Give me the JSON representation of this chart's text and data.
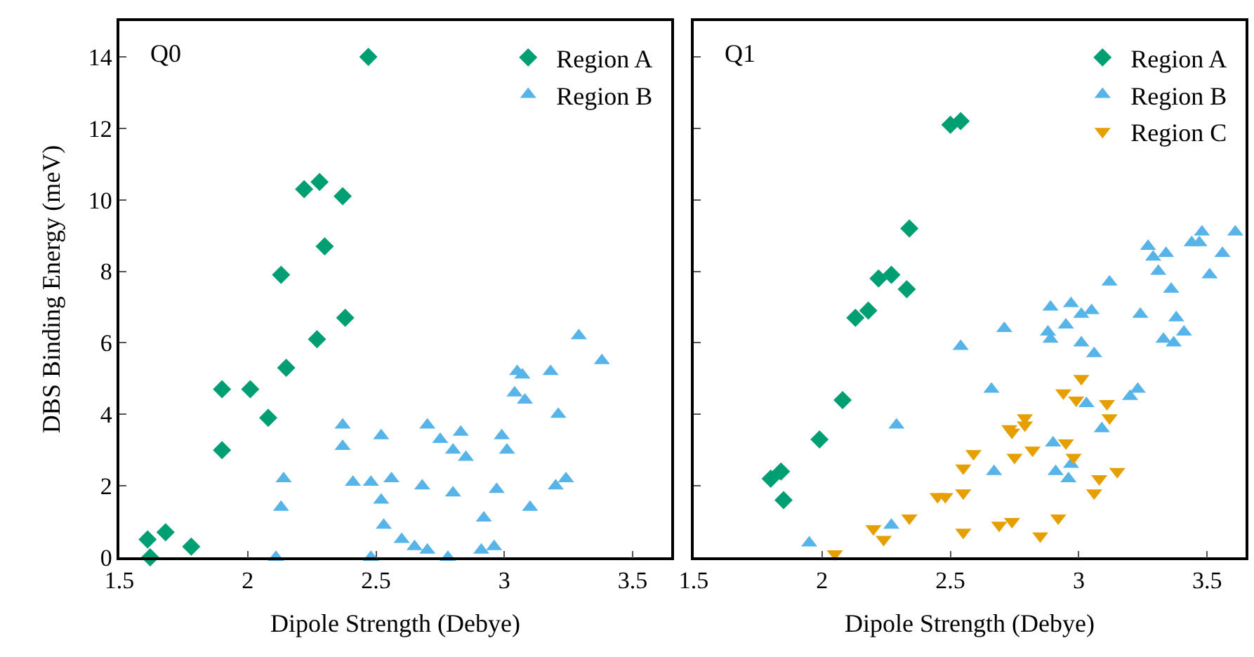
{
  "chart_data": [
    {
      "type": "scatter",
      "title": "Q0",
      "xlabel": "Dipole Strength (Debye)",
      "ylabel": "DBS Binding Energy (meV)",
      "xlim": [
        1.5,
        3.65
      ],
      "xticks": [
        {
          "value": 1.5,
          "label": "1.5"
        },
        2,
        {
          "value": 2.5,
          "label": "2.5"
        },
        3,
        {
          "value": 3.5,
          "label": "3.5"
        }
      ],
      "ylim": [
        0,
        15
      ],
      "yticks": [
        0,
        2,
        4,
        6,
        8,
        10,
        12,
        14
      ],
      "legend": "top right",
      "series": [
        {
          "name": "Region A",
          "color": "#009e73",
          "marker": "diamond",
          "x": [
            1.61,
            1.62,
            1.68,
            1.78,
            1.9,
            1.9,
            2.01,
            2.08,
            2.13,
            2.15,
            2.22,
            2.28,
            2.27,
            2.3,
            2.37,
            2.38,
            2.47
          ],
          "values": [
            0.5,
            0,
            0.7,
            0.3,
            4.7,
            3.0,
            4.7,
            3.9,
            7.9,
            5.3,
            10.3,
            10.5,
            6.1,
            8.7,
            10.1,
            6.7,
            14.0
          ]
        },
        {
          "name": "Region B",
          "color": "#56b4e9",
          "marker": "triangle",
          "x": [
            2.37,
            2.37,
            2.14,
            2.13,
            2.11,
            2.41,
            2.48,
            2.52,
            2.52,
            2.53,
            2.48,
            2.56,
            2.6,
            2.65,
            2.7,
            2.78,
            2.68,
            2.7,
            2.75,
            2.8,
            2.83,
            2.85,
            2.8,
            2.91,
            2.96,
            2.92,
            2.97,
            2.99,
            3.01,
            3.05,
            3.07,
            3.04,
            3.08,
            3.1,
            3.18,
            3.21,
            3.2,
            3.24,
            3.29,
            3.38
          ],
          "values": [
            3.7,
            3.1,
            2.2,
            1.4,
            0,
            2.1,
            2.1,
            3.4,
            1.6,
            0.9,
            0,
            2.2,
            0.5,
            0.3,
            0.2,
            0,
            2.0,
            3.7,
            3.3,
            3.0,
            3.5,
            2.8,
            1.8,
            0.2,
            0.3,
            1.1,
            1.9,
            3.4,
            3.0,
            5.2,
            5.1,
            4.6,
            4.4,
            1.4,
            5.2,
            4.0,
            2.0,
            2.2,
            6.2,
            5.5
          ]
        }
      ]
    },
    {
      "type": "scatter",
      "title": "Q1",
      "xlabel": "Dipole Strength (Debye)",
      "xlim": [
        1.5,
        3.65
      ],
      "xticks": [
        {
          "value": 1.5,
          "label": "1.5"
        },
        2,
        {
          "value": 2.5,
          "label": "2.5"
        },
        3,
        {
          "value": 3.5,
          "label": "3.5"
        }
      ],
      "ylim": [
        0,
        15
      ],
      "yticks": [
        0,
        2,
        4,
        6,
        8,
        10,
        12,
        14
      ],
      "tick_labels": "x",
      "legend": "top right",
      "series": [
        {
          "name": "Region A",
          "color": "#009e73",
          "marker": "diamond",
          "x": [
            1.8,
            1.84,
            1.85,
            1.99,
            2.08,
            2.13,
            2.18,
            2.22,
            2.27,
            2.33,
            2.34,
            2.5,
            2.54
          ],
          "values": [
            2.2,
            2.4,
            1.6,
            3.3,
            4.4,
            6.7,
            6.9,
            7.8,
            7.9,
            7.5,
            9.2,
            12.1,
            12.2
          ]
        },
        {
          "name": "Region B",
          "color": "#56b4e9",
          "marker": "triangle",
          "x": [
            1.95,
            2.27,
            2.29,
            2.54,
            2.66,
            2.71,
            2.67,
            2.89,
            2.97,
            2.88,
            2.95,
            2.89,
            3.01,
            3.05,
            3.01,
            3.06,
            2.9,
            3.03,
            2.91,
            2.96,
            2.97,
            3.09,
            3.12,
            3.2,
            3.23,
            3.24,
            3.27,
            3.29,
            3.34,
            3.31,
            3.36,
            3.38,
            3.33,
            3.37,
            3.41,
            3.44,
            3.48,
            3.47,
            3.56,
            3.51,
            3.61
          ],
          "values": [
            0.4,
            0.9,
            3.7,
            5.9,
            4.7,
            6.4,
            2.4,
            7.0,
            7.1,
            6.3,
            6.5,
            6.1,
            6.8,
            6.9,
            6.0,
            5.7,
            3.2,
            4.3,
            2.4,
            2.2,
            2.6,
            3.6,
            7.7,
            4.5,
            4.7,
            6.8,
            8.7,
            8.4,
            8.5,
            8.0,
            7.5,
            6.7,
            6.1,
            6.0,
            6.3,
            8.8,
            9.1,
            8.8,
            8.5,
            7.9,
            9.1
          ]
        },
        {
          "name": "Region C",
          "color": "#e69f00",
          "marker": "triangle-down",
          "x": [
            2.05,
            2.2,
            2.24,
            2.34,
            2.45,
            2.48,
            2.55,
            2.55,
            2.55,
            2.59,
            2.69,
            2.74,
            2.75,
            2.74,
            2.79,
            2.79,
            2.82,
            2.85,
            2.92,
            2.94,
            2.99,
            3.01,
            2.95,
            2.98,
            3.06,
            3.08,
            3.11,
            3.12,
            3.15,
            2.73
          ],
          "values": [
            0.1,
            0.8,
            0.5,
            1.1,
            1.7,
            1.7,
            0.7,
            1.8,
            2.5,
            2.9,
            0.9,
            1.0,
            2.8,
            3.5,
            3.9,
            3.7,
            3.0,
            0.6,
            1.1,
            4.6,
            4.4,
            5.0,
            3.2,
            2.8,
            1.8,
            2.2,
            4.3,
            3.9,
            2.4,
            3.6
          ]
        }
      ]
    }
  ]
}
